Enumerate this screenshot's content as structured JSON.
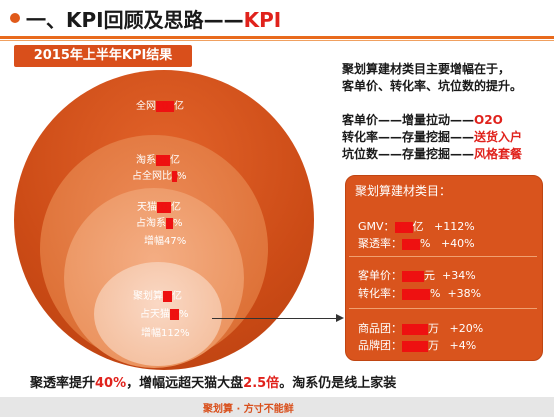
{
  "header": {
    "title_prefix": "一、KPI回顾及思路——",
    "title_accent": "KPI"
  },
  "subtitle": "2015年上半年KPI结果",
  "circles": {
    "outer": {
      "line1_a": "全网",
      "line1_b": "亿"
    },
    "tao": {
      "line1_a": "淘系",
      "line1_b": "亿",
      "line2_a": "占全网比",
      "line2_b": "%"
    },
    "tmall": {
      "line1_a": "天猫",
      "line1_b": "亿",
      "line2_a": "占淘系",
      "line2_b": "%",
      "line3": "增幅47%"
    },
    "ju": {
      "line1_a": "聚划算",
      "line1_b": "亿",
      "line2_a": "占天猫",
      "line2_b": "%",
      "line3": "增幅112%"
    }
  },
  "right_text": {
    "intro1": "聚划算建材类目主要增幅在于，",
    "intro2": "客单价、转化率、坑位数的提升。",
    "row1_a": "客单价——增量拉动——",
    "row1_b": "O2O",
    "row2_a": "转化率——存量挖掘——",
    "row2_b": "送货入户",
    "row3_a": "坑位数——存量挖掘——",
    "row3_b": "风格套餐"
  },
  "result_box": {
    "title": "聚划算建材类目：",
    "gmv_label": "GMV：",
    "gmv_unit": "亿",
    "gmv_growth": "+112%",
    "jt_label": "聚透率：",
    "jt_unit": "%",
    "jt_growth": "+40%",
    "kdj_label": "客单价：",
    "kdj_unit": "元",
    "kdj_growth": "+34%",
    "zhl_label": "转化率：",
    "zhl_unit": "%",
    "zhl_growth": "+38%",
    "sp_label": "商品团：",
    "sp_unit": "万",
    "sp_growth": "+20%",
    "pp_label": "品牌团：",
    "pp_unit": "万",
    "pp_growth": "+4%"
  },
  "bottom": {
    "t1": "聚透率提升",
    "t2": "40%",
    "t3": "，增幅远超天猫大盘",
    "t4": "2.5倍",
    "t5": "。淘系仍是线上家装"
  },
  "footer": {
    "logo": "聚划算 · 方寸不能鲜"
  },
  "colors": {
    "accent": "#e0221c",
    "orange": "#d94f1b",
    "redact": "#ee1111"
  }
}
